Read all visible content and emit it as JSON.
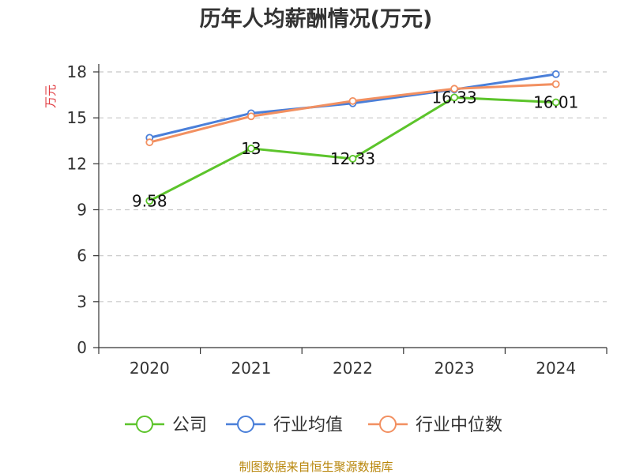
{
  "chart_data": {
    "type": "line",
    "title": "历年人均薪酬情况(万元)",
    "xlabel": "",
    "ylabel": "万元",
    "categories": [
      "2020",
      "2021",
      "2022",
      "2023",
      "2024"
    ],
    "ylim": [
      0,
      18
    ],
    "yticks": [
      0,
      3,
      6,
      9,
      12,
      15,
      18
    ],
    "grid": true,
    "legend_position": "bottom",
    "series": [
      {
        "name": "公司",
        "color": "#5cc42b",
        "values": [
          9.58,
          13,
          12.33,
          16.33,
          16.01
        ],
        "labels": [
          "9.58",
          "13",
          "12.33",
          "16.33",
          "16.01"
        ]
      },
      {
        "name": "行业均值",
        "color": "#4a7fd9",
        "values": [
          13.7,
          15.3,
          15.95,
          16.85,
          17.85
        ]
      },
      {
        "name": "行业中位数",
        "color": "#f29061",
        "values": [
          13.4,
          15.1,
          16.1,
          16.9,
          17.2
        ]
      }
    ]
  },
  "source": "制图数据来自恒生聚源数据库"
}
